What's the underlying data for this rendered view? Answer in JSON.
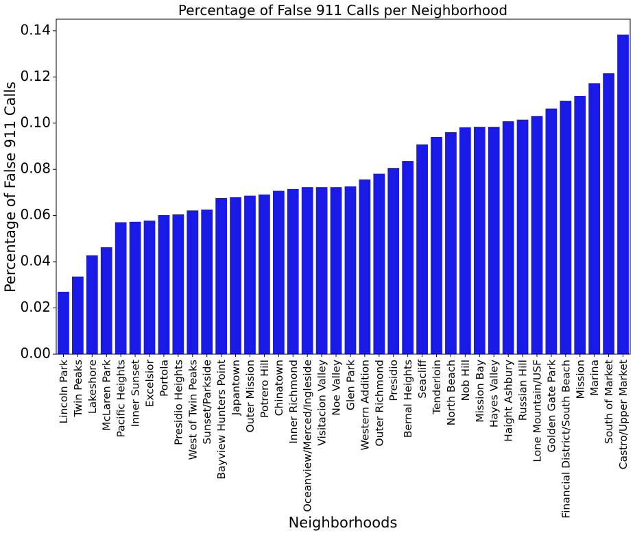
{
  "chart_data": {
    "type": "bar",
    "title": "Percentage of False 911 Calls per Neighborhood",
    "xlabel": "Neighborhoods",
    "ylabel": "Percentage of False 911 Calls",
    "ylim": [
      0,
      0.145
    ],
    "yticks": [
      "0.00",
      "0.02",
      "0.04",
      "0.06",
      "0.08",
      "0.10",
      "0.12",
      "0.14"
    ],
    "grid": false,
    "bar_color": "#1a1ae6",
    "categories": [
      "Lincoln Park",
      "Twin Peaks",
      "Lakeshore",
      "McLaren Park",
      "Pacific Heights",
      "Inner Sunset",
      "Excelsior",
      "Portola",
      "Presidio Heights",
      "West of Twin Peaks",
      "Sunset/Parkside",
      "Bayview Hunters Point",
      "Japantown",
      "Outer Mission",
      "Potrero Hill",
      "Chinatown",
      "Inner Richmond",
      "Oceanview/Merced/Ingleside",
      "Visitacion Valley",
      "Noe Valley",
      "Glen Park",
      "Western Addition",
      "Outer Richmond",
      "Presidio",
      "Bernal Heights",
      "Seacliff",
      "Tenderloin",
      "North Beach",
      "Nob Hill",
      "Mission Bay",
      "Hayes Valley",
      "Haight Ashbury",
      "Russian Hill",
      "Lone Mountain/USF",
      "Golden Gate Park",
      "Financial District/South Beach",
      "Mission",
      "Marina",
      "South of Market",
      "Castro/Upper Market"
    ],
    "values": [
      0.027,
      0.0336,
      0.0428,
      0.0463,
      0.0571,
      0.0573,
      0.0578,
      0.0602,
      0.0605,
      0.0622,
      0.0626,
      0.0676,
      0.0679,
      0.0686,
      0.0691,
      0.0707,
      0.0715,
      0.0723,
      0.0723,
      0.0723,
      0.0726,
      0.0756,
      0.0781,
      0.0806,
      0.0836,
      0.0908,
      0.094,
      0.0961,
      0.0982,
      0.0984,
      0.0984,
      0.1008,
      0.1015,
      0.1031,
      0.1063,
      0.1097,
      0.1118,
      0.1173,
      0.1216,
      0.1383
    ]
  }
}
